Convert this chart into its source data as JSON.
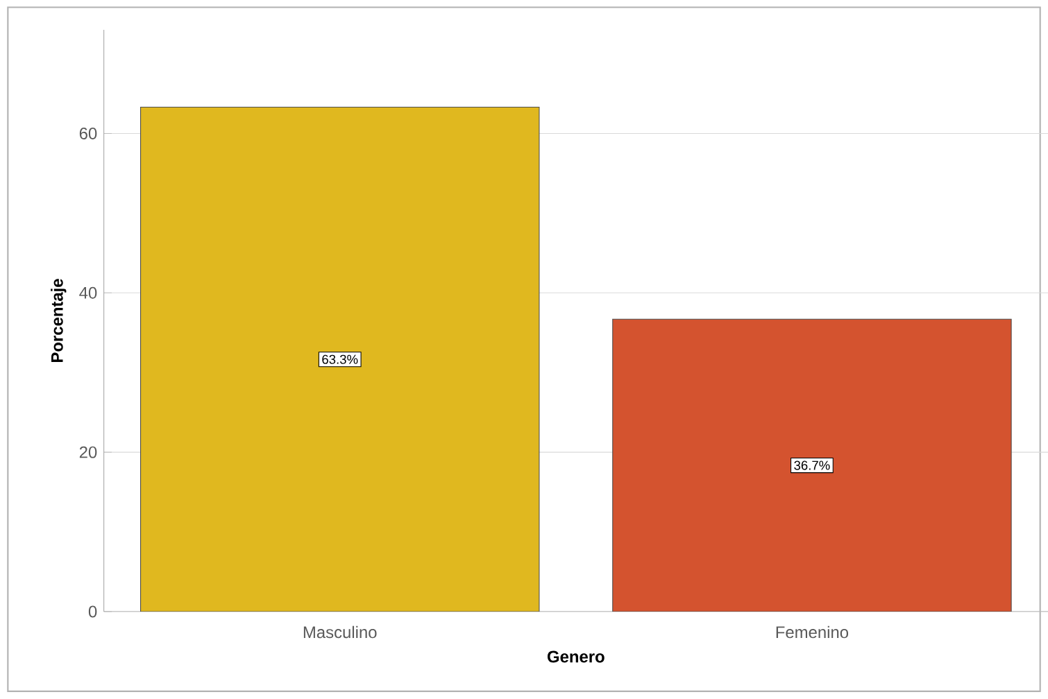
{
  "chart_data": {
    "type": "bar",
    "xlabel": "Genero",
    "ylabel": "Porcentaje",
    "categories": [
      "Masculino",
      "Femenino"
    ],
    "values": [
      63.3,
      36.7
    ],
    "colors": [
      "#e0b81f",
      "#d4532f"
    ],
    "value_labels": [
      "63.3%",
      "36.7%"
    ],
    "ylim": [
      0,
      73
    ],
    "yticks": [
      0,
      20,
      40,
      60
    ],
    "grid": "y"
  }
}
